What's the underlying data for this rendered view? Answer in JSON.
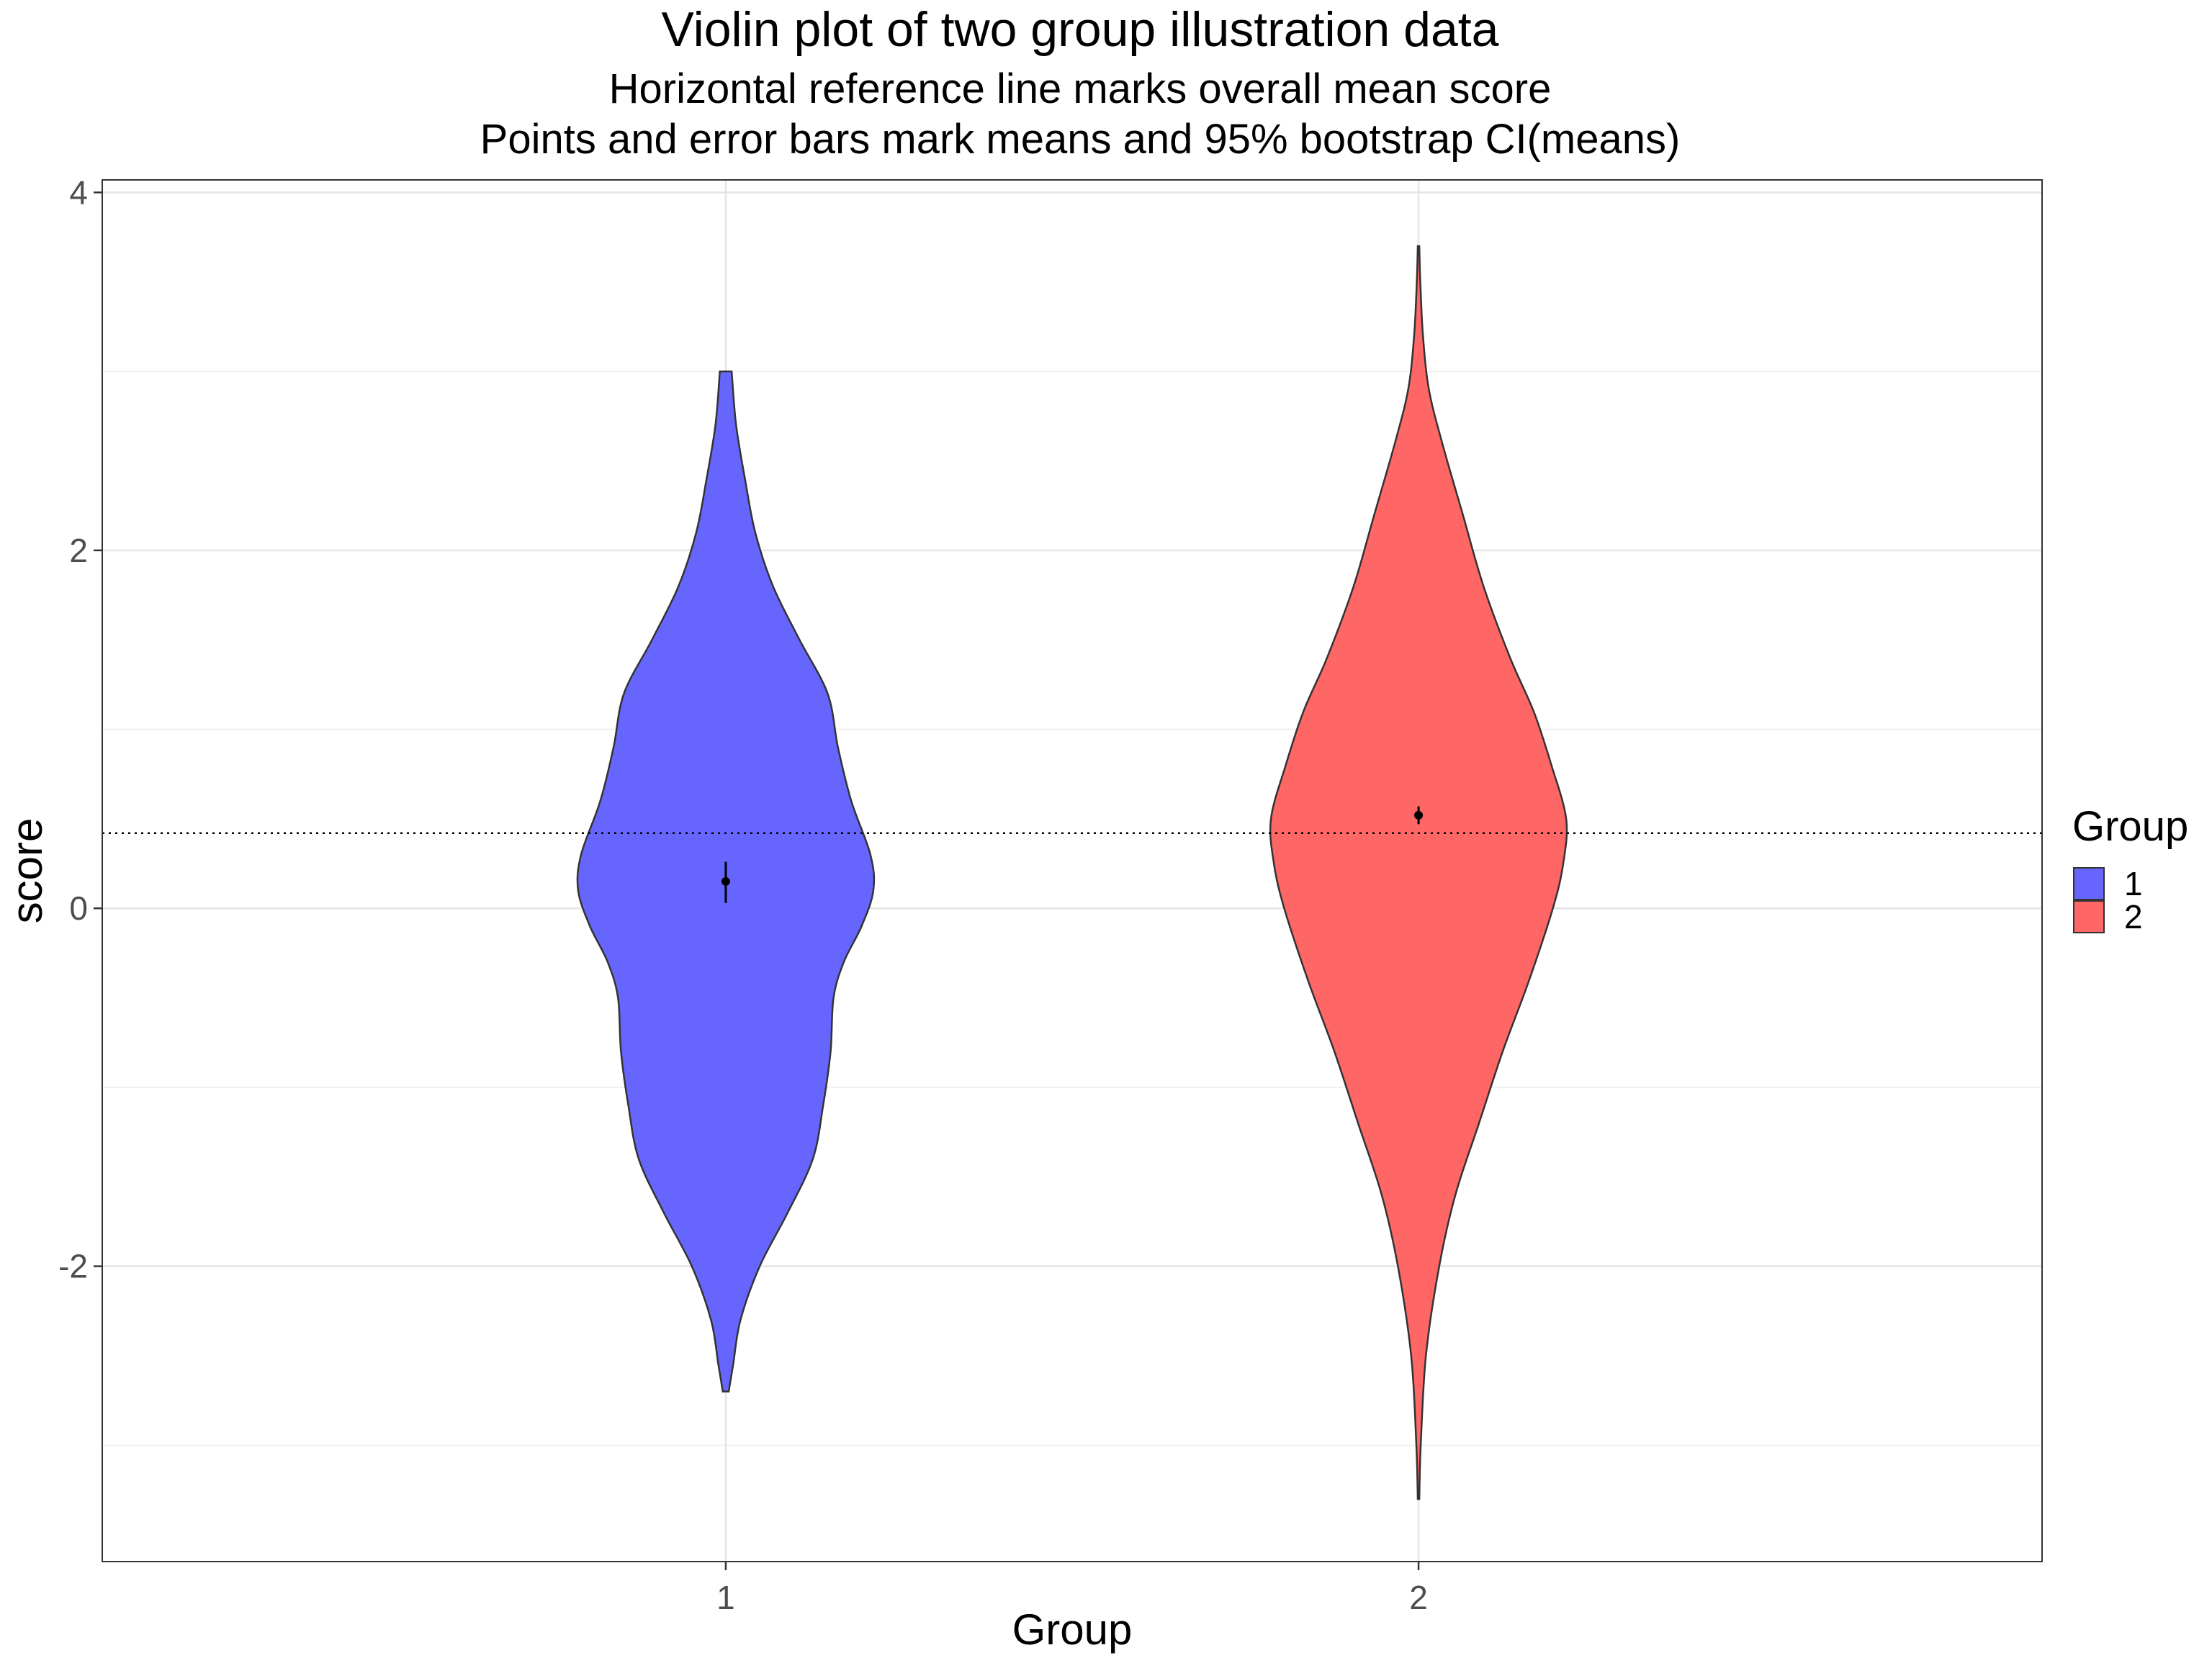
{
  "chart_data": {
    "type": "violin",
    "title": "Violin plot of two group illustration data",
    "subtitles": [
      "Horizontal reference line marks overall mean score",
      "Points and error bars mark means and 95% bootstrap CI(means)"
    ],
    "xlabel": "Group",
    "ylabel": "score",
    "categories": [
      "1",
      "2"
    ],
    "y_ticks": [
      -2,
      0,
      2,
      4
    ],
    "y_tick_labels": [
      "-2",
      "0",
      "2",
      "4"
    ],
    "ylim": [
      -3.65,
      4.07
    ],
    "grid": true,
    "reference_line": {
      "y": 0.42,
      "style": "dotted"
    },
    "legend": {
      "title": "Group",
      "position": "right",
      "entries": [
        "1",
        "2"
      ]
    },
    "colors": {
      "1": "#6666ff",
      "2": "#ff6666",
      "outline": "#333333"
    },
    "series": [
      {
        "name": "1",
        "mean": 0.15,
        "ci": [
          0.03,
          0.26
        ],
        "range": [
          -2.7,
          3.0
        ],
        "density_profile": [
          [
            -2.7,
            0.02
          ],
          [
            -2.55,
            0.05
          ],
          [
            -2.3,
            0.1
          ],
          [
            -2.0,
            0.23
          ],
          [
            -1.7,
            0.42
          ],
          [
            -1.4,
            0.59
          ],
          [
            -1.1,
            0.66
          ],
          [
            -0.8,
            0.71
          ],
          [
            -0.5,
            0.73
          ],
          [
            -0.3,
            0.8
          ],
          [
            -0.1,
            0.92
          ],
          [
            0.1,
            1.0
          ],
          [
            0.3,
            0.98
          ],
          [
            0.6,
            0.85
          ],
          [
            0.9,
            0.76
          ],
          [
            1.2,
            0.69
          ],
          [
            1.5,
            0.5
          ],
          [
            1.8,
            0.32
          ],
          [
            2.1,
            0.2
          ],
          [
            2.4,
            0.13
          ],
          [
            2.7,
            0.07
          ],
          [
            3.0,
            0.04
          ]
        ]
      },
      {
        "name": "2",
        "mean": 0.52,
        "ci": [
          0.47,
          0.57
        ],
        "range": [
          -3.3,
          3.7
        ],
        "density_profile": [
          [
            -3.3,
            0.005
          ],
          [
            -3.0,
            0.015
          ],
          [
            -2.5,
            0.05
          ],
          [
            -2.0,
            0.14
          ],
          [
            -1.6,
            0.25
          ],
          [
            -1.2,
            0.41
          ],
          [
            -0.8,
            0.57
          ],
          [
            -0.4,
            0.75
          ],
          [
            0.0,
            0.91
          ],
          [
            0.25,
            0.98
          ],
          [
            0.5,
            1.0
          ],
          [
            0.8,
            0.9
          ],
          [
            1.1,
            0.78
          ],
          [
            1.4,
            0.62
          ],
          [
            1.8,
            0.44
          ],
          [
            2.2,
            0.3
          ],
          [
            2.6,
            0.16
          ],
          [
            2.9,
            0.07
          ],
          [
            3.2,
            0.03
          ],
          [
            3.5,
            0.012
          ],
          [
            3.7,
            0.005
          ]
        ]
      }
    ]
  }
}
